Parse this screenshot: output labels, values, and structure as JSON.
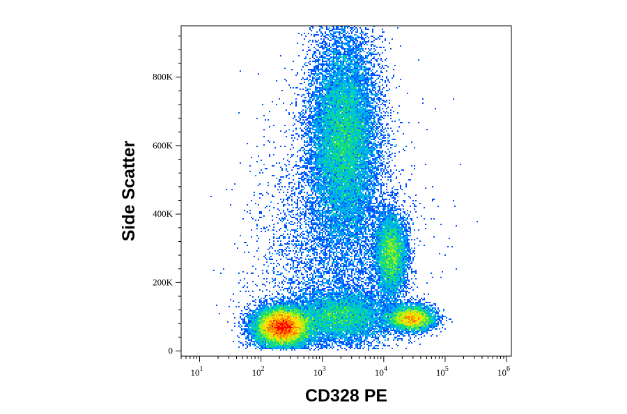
{
  "chart_data": {
    "type": "scatter",
    "style": "density-dot-plot",
    "xlabel": "CD328 PE",
    "ylabel": "Side Scatter",
    "x_scale": "log",
    "xlim": [
      5,
      1200000
    ],
    "ylim": [
      -15000,
      950000
    ],
    "x_ticks": [
      {
        "base": "10",
        "exp": "1",
        "value": 10
      },
      {
        "base": "10",
        "exp": "2",
        "value": 100
      },
      {
        "base": "10",
        "exp": "3",
        "value": 1000
      },
      {
        "base": "10",
        "exp": "4",
        "value": 10000
      },
      {
        "base": "10",
        "exp": "5",
        "value": 100000
      },
      {
        "base": "10",
        "exp": "6",
        "value": 1000000
      }
    ],
    "y_ticks": [
      {
        "label": "0",
        "value": 0
      },
      {
        "label": "200K",
        "value": 200000
      },
      {
        "label": "400K",
        "value": 400000
      },
      {
        "label": "600K",
        "value": 600000
      },
      {
        "label": "800K",
        "value": 800000
      }
    ],
    "colors": [
      "#0000cc",
      "#0050ff",
      "#00a0ff",
      "#00d0c0",
      "#20e060",
      "#a0f020",
      "#ffe000",
      "#ff8000",
      "#ff0000"
    ],
    "populations": [
      {
        "log_x_center": 2.35,
        "y_center": 70000,
        "log_x_sd": 0.22,
        "y_sd": 28000,
        "weight": 0.3
      },
      {
        "log_x_center": 3.35,
        "y_center": 620000,
        "log_x_sd": 0.28,
        "y_sd": 150000,
        "weight": 0.3
      },
      {
        "log_x_center": 4.12,
        "y_center": 280000,
        "log_x_sd": 0.13,
        "y_sd": 60000,
        "weight": 0.1
      },
      {
        "log_x_center": 4.45,
        "y_center": 95000,
        "log_x_sd": 0.18,
        "y_sd": 18000,
        "weight": 0.1
      },
      {
        "log_x_center": 3.3,
        "y_center": 100000,
        "log_x_sd": 0.4,
        "y_sd": 40000,
        "weight": 0.12
      },
      {
        "log_x_center": 3.2,
        "y_center": 300000,
        "log_x_sd": 0.6,
        "y_sd": 180000,
        "weight": 0.08
      }
    ]
  }
}
